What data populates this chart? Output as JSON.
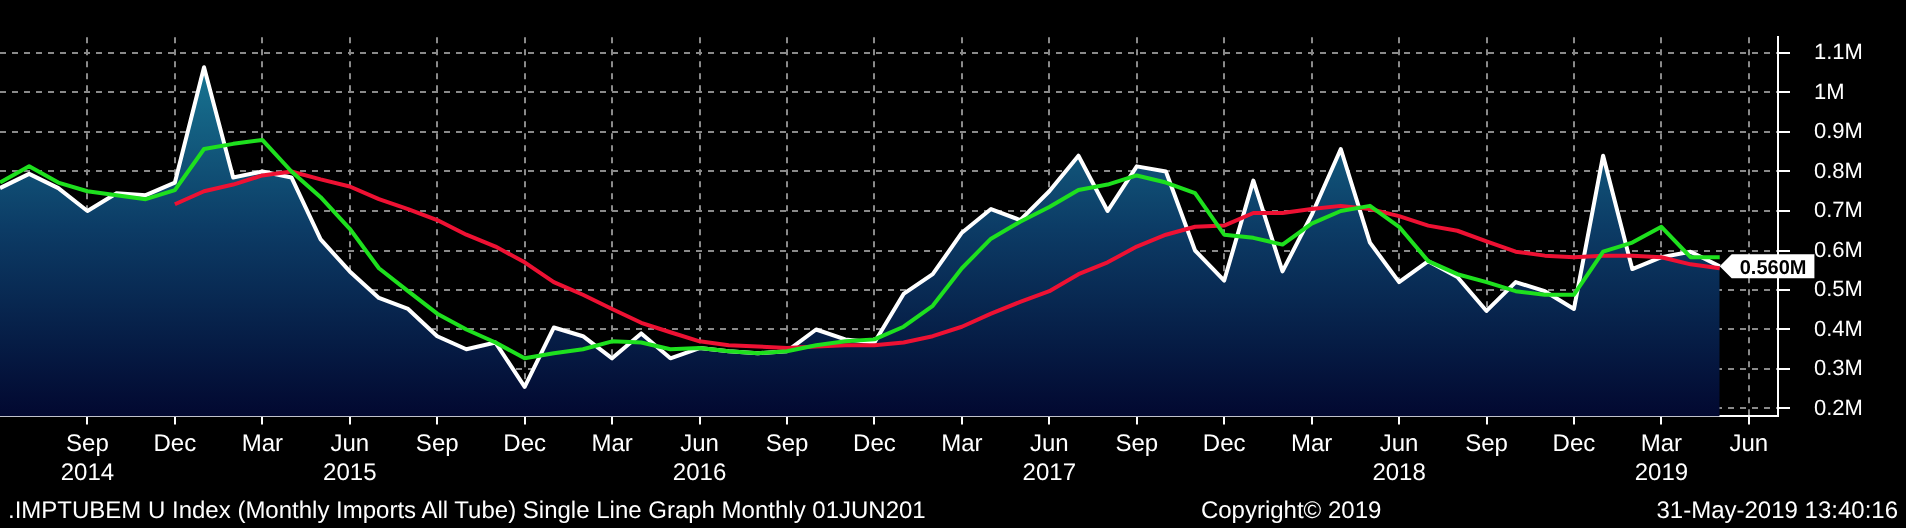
{
  "chart_data": {
    "type": "area",
    "x": [
      "2014-06",
      "2014-07",
      "2014-08",
      "2014-09",
      "2014-10",
      "2014-11",
      "2014-12",
      "2015-01",
      "2015-02",
      "2015-03",
      "2015-04",
      "2015-05",
      "2015-06",
      "2015-07",
      "2015-08",
      "2015-09",
      "2015-10",
      "2015-11",
      "2015-12",
      "2016-01",
      "2016-02",
      "2016-03",
      "2016-04",
      "2016-05",
      "2016-06",
      "2016-07",
      "2016-08",
      "2016-09",
      "2016-10",
      "2016-11",
      "2016-12",
      "2017-01",
      "2017-02",
      "2017-03",
      "2017-04",
      "2017-05",
      "2017-06",
      "2017-07",
      "2017-08",
      "2017-09",
      "2017-10",
      "2017-11",
      "2017-12",
      "2018-01",
      "2018-02",
      "2018-03",
      "2018-04",
      "2018-05",
      "2018-06",
      "2018-07",
      "2018-08",
      "2018-09",
      "2018-10",
      "2018-11",
      "2018-12",
      "2019-01",
      "2019-02",
      "2019-03",
      "2019-04",
      "2019-05"
    ],
    "series": [
      {
        "type": "area",
        "color": "#ffffff",
        "values": [
          0.758,
          0.794,
          0.758,
          0.7,
          0.745,
          0.74,
          0.772,
          1.064,
          0.785,
          0.8,
          0.785,
          0.628,
          0.547,
          0.48,
          0.452,
          0.383,
          0.35,
          0.367,
          0.255,
          0.405,
          0.383,
          0.327,
          0.39,
          0.327,
          0.353,
          0.345,
          0.34,
          0.345,
          0.4,
          0.375,
          0.367,
          0.49,
          0.54,
          0.645,
          0.705,
          0.677,
          0.75,
          0.84,
          0.7,
          0.813,
          0.8,
          0.6,
          0.524,
          0.777,
          0.547,
          0.69,
          0.857,
          0.62,
          0.52,
          0.573,
          0.533,
          0.447,
          0.52,
          0.497,
          0.452,
          0.84,
          0.553,
          0.583,
          0.597,
          0.56
        ]
      },
      {
        "type": "line",
        "color": "#1ee01e",
        "values": [
          0.772,
          0.813,
          0.772,
          0.75,
          0.74,
          0.73,
          0.753,
          0.857,
          0.87,
          0.88,
          0.8,
          0.735,
          0.655,
          0.555,
          0.497,
          0.44,
          0.4,
          0.367,
          0.327,
          0.34,
          0.35,
          0.37,
          0.367,
          0.35,
          0.353,
          0.345,
          0.34,
          0.345,
          0.36,
          0.37,
          0.375,
          0.407,
          0.46,
          0.555,
          0.63,
          0.673,
          0.71,
          0.753,
          0.767,
          0.79,
          0.772,
          0.745,
          0.64,
          0.632,
          0.615,
          0.668,
          0.7,
          0.713,
          0.66,
          0.573,
          0.54,
          0.52,
          0.497,
          0.488,
          0.488,
          0.597,
          0.62,
          0.66,
          0.583,
          0.583
        ]
      },
      {
        "type": "line",
        "color": "#ee1133",
        "values": [
          null,
          null,
          null,
          null,
          null,
          null,
          0.717,
          0.75,
          0.767,
          0.79,
          0.8,
          0.78,
          0.762,
          0.73,
          0.705,
          0.677,
          0.64,
          0.61,
          0.57,
          0.52,
          0.488,
          0.452,
          0.417,
          0.393,
          0.37,
          0.36,
          0.357,
          0.353,
          0.357,
          0.36,
          0.36,
          0.367,
          0.383,
          0.407,
          0.44,
          0.47,
          0.497,
          0.54,
          0.57,
          0.61,
          0.64,
          0.66,
          0.663,
          0.695,
          0.695,
          0.705,
          0.713,
          0.705,
          0.687,
          0.663,
          0.65,
          0.623,
          0.597,
          0.587,
          0.583,
          0.587,
          0.587,
          0.583,
          0.565,
          0.555
        ]
      }
    ],
    "xlim": [
      "2014-06",
      "2019-07"
    ],
    "xticks": [
      {
        "value": "2014-09",
        "label": "Sep\n2014"
      },
      {
        "value": "2014-12",
        "label": "Dec"
      },
      {
        "value": "2015-03",
        "label": "Mar"
      },
      {
        "value": "2015-06",
        "label": "Jun\n2015"
      },
      {
        "value": "2015-09",
        "label": "Sep"
      },
      {
        "value": "2015-12",
        "label": "Dec"
      },
      {
        "value": "2016-03",
        "label": "Mar"
      },
      {
        "value": "2016-06",
        "label": "Jun\n2016"
      },
      {
        "value": "2016-09",
        "label": "Sep"
      },
      {
        "value": "2016-12",
        "label": "Dec"
      },
      {
        "value": "2017-03",
        "label": "Mar"
      },
      {
        "value": "2017-06",
        "label": "Jun\n2017"
      },
      {
        "value": "2017-09",
        "label": "Sep"
      },
      {
        "value": "2017-12",
        "label": "Dec"
      },
      {
        "value": "2018-03",
        "label": "Mar"
      },
      {
        "value": "2018-06",
        "label": "Jun\n2018"
      },
      {
        "value": "2018-09",
        "label": "Sep"
      },
      {
        "value": "2018-12",
        "label": "Dec"
      },
      {
        "value": "2019-03",
        "label": "Mar\n2019"
      },
      {
        "value": "2019-06",
        "label": "Jun"
      }
    ],
    "ylim": [
      0.18,
      1.14
    ],
    "yticks": [
      {
        "value": 0.2,
        "label": "0.2M"
      },
      {
        "value": 0.3,
        "label": "0.3M"
      },
      {
        "value": 0.4,
        "label": "0.4M"
      },
      {
        "value": 0.5,
        "label": "0.5M"
      },
      {
        "value": 0.6,
        "label": "0.6M"
      },
      {
        "value": 0.7,
        "label": "0.7M"
      },
      {
        "value": 0.8,
        "label": "0.8M"
      },
      {
        "value": 0.9,
        "label": "0.9M"
      },
      {
        "value": 1,
        "label": "1M"
      },
      {
        "value": 1.1,
        "label": "1.1M"
      }
    ],
    "grid": true,
    "line_style": "solid",
    "marker": "none",
    "legend": false,
    "annotations": [
      {
        "text": "0.560M",
        "x": "2019-05",
        "y": 0.56
      },
      ".IMPTUBEM U Index (Monthly Imports All Tube) Single Line Graph  Monthly 01JUN201",
      "Copyright© 2019",
      "31-May-2019 13:40:16"
    ]
  }
}
